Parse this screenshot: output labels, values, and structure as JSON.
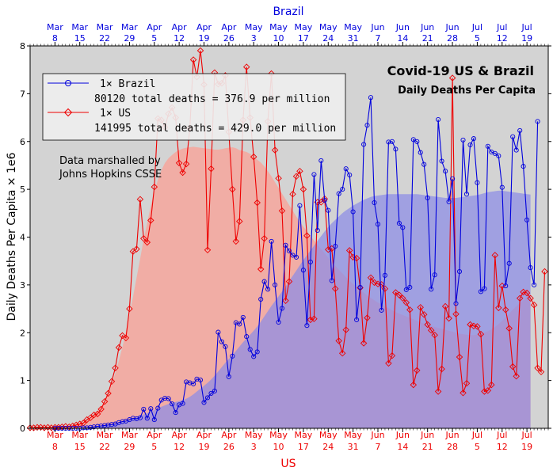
{
  "chart_data": {
    "type": "line",
    "title": "Covid-19 US & Brazil",
    "subtitle": "Daily Deaths Per Capita",
    "top_axis_title": "Brazil",
    "bottom_axis_title": "US",
    "ylabel": "Daily Deaths Per Capita × 1e6",
    "ylim": [
      0,
      8
    ],
    "yticks": [
      0,
      1,
      2,
      3,
      4,
      5,
      6,
      7,
      8
    ],
    "annotation": [
      "Data marshalled by",
      "Johns Hopkins CSSE"
    ],
    "x_start_date": "2020-03-01",
    "x_end_date": "2020-07-25",
    "date_ticks": [
      "Mar 8",
      "Mar 15",
      "Mar 22",
      "Mar 29",
      "Apr 5",
      "Apr 12",
      "Apr 19",
      "Apr 26",
      "May 3",
      "May 10",
      "May 17",
      "May 24",
      "May 31",
      "Jun 7",
      "Jun 14",
      "Jun 21",
      "Jun 28",
      "Jul 5",
      "Jul 12",
      "Jul 19"
    ],
    "tick_dates": [
      "2020-03-08",
      "2020-03-15",
      "2020-03-22",
      "2020-03-29",
      "2020-04-05",
      "2020-04-12",
      "2020-04-19",
      "2020-04-26",
      "2020-05-03",
      "2020-05-10",
      "2020-05-17",
      "2020-05-24",
      "2020-05-31",
      "2020-06-07",
      "2020-06-14",
      "2020-06-21",
      "2020-06-28",
      "2020-07-05",
      "2020-07-12",
      "2020-07-19"
    ],
    "colors": {
      "brazil": "#0000dd",
      "us": "#ee0000",
      "background": "#d3d3d3",
      "us_band": "#f4a8a0",
      "brazil_band": "#8c8ce6"
    },
    "legend": {
      "position": "top-left"
    },
    "series": [
      {
        "name": "1× Brazil",
        "summary": "80120 total deaths = 376.9 per million",
        "color": "#0000dd",
        "marker": "circle",
        "start_date": "2020-03-08",
        "values": [
          0.0,
          0.0,
          0.0,
          0.0,
          0.0,
          0.0,
          0.0,
          0.0,
          0.01,
          0.01,
          0.02,
          0.03,
          0.04,
          0.05,
          0.06,
          0.07,
          0.08,
          0.09,
          0.12,
          0.14,
          0.15,
          0.18,
          0.21,
          0.2,
          0.22,
          0.4,
          0.21,
          0.41,
          0.18,
          0.42,
          0.59,
          0.63,
          0.62,
          0.51,
          0.33,
          0.49,
          0.52,
          0.97,
          0.95,
          0.93,
          1.03,
          1.01,
          0.54,
          0.64,
          0.73,
          0.78,
          2.01,
          1.81,
          1.71,
          1.08,
          1.51,
          2.21,
          2.18,
          2.32,
          1.92,
          1.65,
          1.5,
          1.6,
          2.7,
          3.07,
          2.91,
          3.91,
          3.0,
          2.22,
          2.51,
          3.83,
          3.71,
          3.62,
          3.58,
          4.66,
          3.31,
          2.15,
          3.48,
          5.31,
          4.14,
          5.6,
          4.77,
          4.56,
          3.09,
          3.81,
          4.91,
          5.0,
          5.43,
          5.3,
          4.53,
          2.27,
          2.95,
          5.94,
          6.34,
          6.92,
          4.72,
          4.27,
          2.47,
          3.2,
          5.99,
          6.0,
          5.84,
          4.29,
          4.2,
          2.9,
          2.95,
          6.04,
          6.0,
          5.77,
          5.52,
          4.82,
          2.91,
          3.21,
          6.46,
          5.59,
          5.38,
          4.74,
          5.22,
          2.61,
          3.28,
          6.03,
          4.9,
          5.93,
          6.06,
          5.14,
          2.86,
          2.92,
          5.9,
          5.78,
          5.75,
          5.7,
          5.04,
          2.98,
          3.45,
          6.1,
          5.82,
          6.23,
          5.48,
          4.36,
          3.36,
          3.0,
          6.42
        ]
      },
      {
        "name": "1× US",
        "summary": "141995 total deaths = 429.0 per million",
        "color": "#ee0000",
        "marker": "diamond",
        "start_date": "2020-03-01",
        "values": [
          0.01,
          0.01,
          0.02,
          0.02,
          0.01,
          0.02,
          0.01,
          0.02,
          0.02,
          0.03,
          0.04,
          0.03,
          0.05,
          0.07,
          0.09,
          0.11,
          0.18,
          0.22,
          0.28,
          0.3,
          0.4,
          0.56,
          0.73,
          0.98,
          1.26,
          1.69,
          1.94,
          1.89,
          2.5,
          3.7,
          3.75,
          4.79,
          3.97,
          3.89,
          4.35,
          5.05,
          6.48,
          6.45,
          6.3,
          6.58,
          6.71,
          6.5,
          5.55,
          5.35,
          5.53,
          6.28,
          7.71,
          7.35,
          7.9,
          7.19,
          3.73,
          5.43,
          7.44,
          7.2,
          7.22,
          7.38,
          6.2,
          5.0,
          3.91,
          4.33,
          6.45,
          7.56,
          6.5,
          5.68,
          4.72,
          3.33,
          3.97,
          6.42,
          7.42,
          5.82,
          5.23,
          4.55,
          2.67,
          3.07,
          4.9,
          5.27,
          5.38,
          5.0,
          4.03,
          2.27,
          2.29,
          4.73,
          4.73,
          4.8,
          3.74,
          3.76,
          2.92,
          1.83,
          1.57,
          2.06,
          3.72,
          3.58,
          3.56,
          2.94,
          1.78,
          2.31,
          3.15,
          3.05,
          3.02,
          3.01,
          2.92,
          1.36,
          1.52,
          2.84,
          2.79,
          2.72,
          2.63,
          2.48,
          0.91,
          1.21,
          2.53,
          2.38,
          2.17,
          2.05,
          1.95,
          0.77,
          1.24,
          2.55,
          2.3,
          7.33,
          2.39,
          1.49,
          0.74,
          0.94,
          2.17,
          2.14,
          2.13,
          1.97,
          0.77,
          0.79,
          0.91,
          3.62,
          2.52,
          2.98,
          2.48,
          2.09,
          1.29,
          1.09,
          2.72,
          2.85,
          2.83,
          2.72,
          2.58,
          1.26,
          1.18,
          3.28
        ]
      }
    ],
    "smoothed_bands": [
      {
        "name": "US 7-day average",
        "color": "#f4a8a0",
        "start_date": "2020-03-01",
        "values": [
          0.01,
          0.01,
          0.02,
          0.02,
          0.02,
          0.02,
          0.02,
          0.02,
          0.02,
          0.03,
          0.04,
          0.05,
          0.06,
          0.08,
          0.1,
          0.13,
          0.17,
          0.22,
          0.28,
          0.36,
          0.46,
          0.58,
          0.73,
          0.92,
          1.15,
          1.41,
          1.7,
          2.02,
          2.37,
          2.75,
          3.15,
          3.55,
          3.95,
          4.3,
          4.65,
          4.95,
          5.2,
          5.4,
          5.55,
          5.65,
          5.72,
          5.78,
          5.82,
          5.85,
          5.87,
          5.88,
          5.89,
          5.88,
          5.87,
          5.86,
          5.85,
          5.84,
          5.83,
          5.83,
          5.84,
          5.86,
          5.87,
          5.88,
          5.86,
          5.82,
          5.8,
          5.78,
          5.74,
          5.68,
          5.62,
          5.56,
          5.48,
          5.38,
          5.27,
          5.15,
          5.03,
          4.91,
          4.79,
          4.67,
          4.55,
          4.43,
          4.32,
          4.22,
          4.12,
          4.02,
          3.93,
          3.84,
          3.75,
          3.66,
          3.57,
          3.48,
          3.4,
          3.32,
          3.24,
          3.16,
          3.09,
          3.02,
          2.96,
          2.9,
          2.84,
          2.78,
          2.73,
          2.68,
          2.63,
          2.59,
          2.55,
          2.51,
          2.47,
          2.43,
          2.4,
          2.37,
          2.34,
          2.31,
          2.28,
          2.25,
          2.22,
          2.19,
          2.16,
          2.14,
          2.12,
          2.1,
          2.08,
          2.06,
          2.04,
          2.02,
          2.0,
          1.98,
          1.97,
          1.96,
          1.95,
          1.95,
          1.96,
          1.98,
          2.0,
          2.03,
          2.07,
          2.12,
          2.18,
          2.25,
          2.32,
          2.4,
          2.48,
          2.55,
          2.62,
          2.68,
          2.74,
          2.78
        ]
      },
      {
        "name": "Brazil 7-day average",
        "color": "#8c8ce6",
        "start_date": "2020-03-08",
        "values": [
          0.0,
          0.0,
          0.0,
          0.0,
          0.0,
          0.0,
          0.0,
          0.0,
          0.01,
          0.01,
          0.02,
          0.03,
          0.04,
          0.05,
          0.06,
          0.07,
          0.08,
          0.1,
          0.12,
          0.14,
          0.16,
          0.18,
          0.2,
          0.23,
          0.26,
          0.29,
          0.32,
          0.35,
          0.38,
          0.41,
          0.45,
          0.48,
          0.51,
          0.53,
          0.55,
          0.57,
          0.59,
          0.62,
          0.66,
          0.71,
          0.77,
          0.83,
          0.89,
          0.95,
          1.02,
          1.1,
          1.19,
          1.28,
          1.37,
          1.45,
          1.53,
          1.62,
          1.71,
          1.8,
          1.88,
          1.96,
          2.04,
          2.13,
          2.23,
          2.34,
          2.45,
          2.56,
          2.66,
          2.76,
          2.86,
          2.97,
          3.08,
          3.19,
          3.3,
          3.41,
          3.52,
          3.62,
          3.72,
          3.82,
          3.92,
          4.02,
          4.12,
          4.21,
          4.29,
          4.36,
          4.43,
          4.5,
          4.56,
          4.61,
          4.66,
          4.7,
          4.74,
          4.78,
          4.81,
          4.84,
          4.86,
          4.87,
          4.88,
          4.89,
          4.9,
          4.9,
          4.9,
          4.9,
          4.9,
          4.9,
          4.9,
          4.9,
          4.9,
          4.89,
          4.88,
          4.87,
          4.86,
          4.85,
          4.84,
          4.83,
          4.82,
          4.82,
          4.82,
          4.82,
          4.83,
          4.84,
          4.85,
          4.86,
          4.87,
          4.88,
          4.9,
          4.92,
          4.94,
          4.95,
          4.96,
          4.97,
          4.97,
          4.96,
          4.95,
          4.94,
          4.93,
          4.92,
          4.91,
          4.9,
          4.89
        ]
      }
    ]
  }
}
